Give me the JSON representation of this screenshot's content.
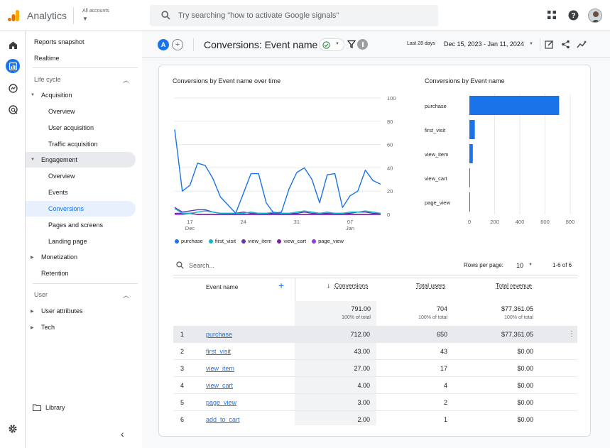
{
  "app": {
    "name": "Analytics",
    "accounts_label": "All accounts"
  },
  "search": {
    "placeholder": "Try searching \"how to activate Google signals\""
  },
  "icons": {
    "logo": "analytics-logo",
    "search": "search-icon",
    "apps": "apps-grid-icon",
    "help": "help-icon",
    "home": "home-icon",
    "reports": "reports-icon",
    "explore": "explore-icon",
    "advertising": "advertising-icon",
    "settings": "gear-icon"
  },
  "colors": {
    "accent": "#1a73e8",
    "selected_bg": "#e8f0fe",
    "engagement_bg": "#e8eaed"
  },
  "sidenav": {
    "reports_snapshot": "Reports snapshot",
    "realtime": "Realtime",
    "lifecycle": "Life cycle",
    "acquisition": "Acquisition",
    "acq_overview": "Overview",
    "user_acquisition": "User acquisition",
    "traffic_acquisition": "Traffic acquisition",
    "engagement": "Engagement",
    "eng_overview": "Overview",
    "events": "Events",
    "conversions": "Conversions",
    "pages_screens": "Pages and screens",
    "landing_page": "Landing page",
    "monetization": "Monetization",
    "retention": "Retention",
    "user": "User",
    "user_attributes": "User attributes",
    "tech": "Tech",
    "library": "Library"
  },
  "header": {
    "comparison_badge": "A",
    "title": "Conversions: Event name",
    "range_label": "Last 28 days",
    "range_value": "Dec 15, 2023 - Jan 11, 2024"
  },
  "line_chart": {
    "title": "Conversions by Event name over time"
  },
  "bar_chart": {
    "title": "Conversions by Event name"
  },
  "chart_data": [
    {
      "type": "line",
      "title": "Conversions by Event name over time",
      "ylim": [
        0,
        100
      ],
      "yticks": [
        "100",
        "80",
        "60",
        "40",
        "20",
        "0"
      ],
      "xticks": [
        {
          "label": "17",
          "sub": "Dec",
          "index": 2
        },
        {
          "label": "24",
          "sub": "",
          "index": 9
        },
        {
          "label": "31",
          "sub": "",
          "index": 16
        },
        {
          "label": "07",
          "sub": "Jan",
          "index": 23
        }
      ],
      "series": [
        {
          "name": "purchase",
          "color": "#1a73e8",
          "values": [
            73,
            20,
            25,
            44,
            42,
            31,
            15,
            8,
            1,
            18,
            35,
            35,
            10,
            1,
            2,
            22,
            36,
            40,
            30,
            10,
            34,
            35,
            6,
            16,
            20,
            38,
            29,
            26
          ]
        },
        {
          "name": "first_visit",
          "color": "#12b5cb",
          "values": [
            5,
            1,
            1,
            2,
            3,
            2,
            1,
            1,
            1,
            1,
            2,
            1,
            1,
            2,
            1,
            1,
            2,
            3,
            2,
            1,
            2,
            1,
            1,
            2,
            2,
            3,
            2,
            1
          ]
        },
        {
          "name": "view_item",
          "color": "#5e35b1",
          "values": [
            6,
            2,
            3,
            4,
            4,
            2,
            1,
            1,
            1,
            2,
            1,
            1,
            1,
            1,
            1,
            1,
            1,
            2,
            1,
            1,
            1,
            1,
            1,
            1,
            2,
            2,
            1,
            1
          ]
        },
        {
          "name": "view_cart",
          "color": "#7b1fa2",
          "values": [
            1,
            1,
            1,
            0,
            0,
            0,
            0,
            0,
            0,
            0,
            0,
            0,
            0,
            0,
            0,
            0,
            0,
            0,
            0,
            0,
            0,
            0,
            0,
            0,
            0,
            0,
            0,
            0
          ]
        },
        {
          "name": "page_view",
          "color": "#9334e6",
          "values": [
            0,
            0,
            1,
            0,
            0,
            0,
            0,
            0,
            0,
            0,
            0,
            0,
            0,
            0,
            0,
            0,
            0,
            0,
            0,
            0,
            0,
            0,
            0,
            0,
            0,
            0,
            0,
            1
          ]
        }
      ]
    },
    {
      "type": "bar",
      "title": "Conversions by Event name",
      "orientation": "horizontal",
      "categories": [
        "purchase",
        "first_visit",
        "view_item",
        "view_cart",
        "page_view"
      ],
      "values": [
        712,
        43,
        27,
        4,
        3
      ],
      "xlim": [
        0,
        800
      ],
      "xticks": [
        "0",
        "200",
        "400",
        "600",
        "800"
      ],
      "color": "#1a73e8"
    }
  ],
  "table": {
    "search_placeholder": "Search...",
    "rows_per_page_label": "Rows per page:",
    "rows_per_page_value": "10",
    "page_info": "1-6 of 6",
    "headers": {
      "event_name": "Event name",
      "conversions": "Conversions",
      "total_users": "Total users",
      "total_revenue": "Total revenue"
    },
    "totals": {
      "conversions": "791.00",
      "conversions_sub": "100% of total",
      "users": "704",
      "users_sub": "100% of total",
      "revenue": "$77,361.05",
      "revenue_sub": "100% of total"
    },
    "rows": [
      {
        "idx": "1",
        "name": "purchase",
        "conversions": "712.00",
        "users": "650",
        "revenue": "$77,361.05"
      },
      {
        "idx": "2",
        "name": "first_visit",
        "conversions": "43.00",
        "users": "43",
        "revenue": "$0.00"
      },
      {
        "idx": "3",
        "name": "view_item",
        "conversions": "27.00",
        "users": "17",
        "revenue": "$0.00"
      },
      {
        "idx": "4",
        "name": "view_cart",
        "conversions": "4.00",
        "users": "4",
        "revenue": "$0.00"
      },
      {
        "idx": "5",
        "name": "page_view",
        "conversions": "3.00",
        "users": "2",
        "revenue": "$0.00"
      },
      {
        "idx": "6",
        "name": "add_to_cart",
        "conversions": "2.00",
        "users": "1",
        "revenue": "$0.00"
      }
    ]
  }
}
